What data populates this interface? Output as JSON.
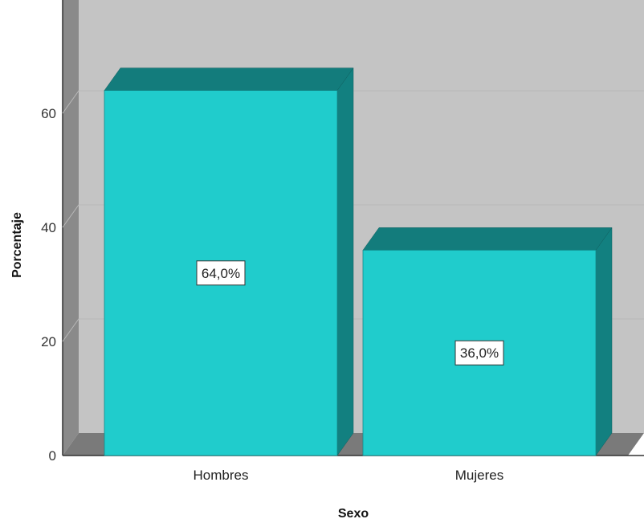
{
  "chart_data": {
    "type": "bar",
    "categories": [
      "Hombres",
      "Mujeres"
    ],
    "values": [
      64.0,
      36.0
    ],
    "data_labels": [
      "64,0%",
      "36,0%"
    ],
    "title": "",
    "xlabel": "Sexo",
    "ylabel": "Porcentaje",
    "ylim": [
      0,
      80
    ],
    "yticks": [
      0,
      20,
      40,
      60
    ],
    "ytick_labels": [
      "0",
      "20",
      "40",
      "60"
    ],
    "grid": true,
    "style": "3d",
    "colors": {
      "bar_front": "#20cccc",
      "bar_top": "#137c7c",
      "bar_side": "#128080",
      "plot_back": "#c4c4c4",
      "plot_floor": "#7a7a7a",
      "plot_wall": "#8a8a8a",
      "gridline": "#b8b8b8"
    }
  }
}
